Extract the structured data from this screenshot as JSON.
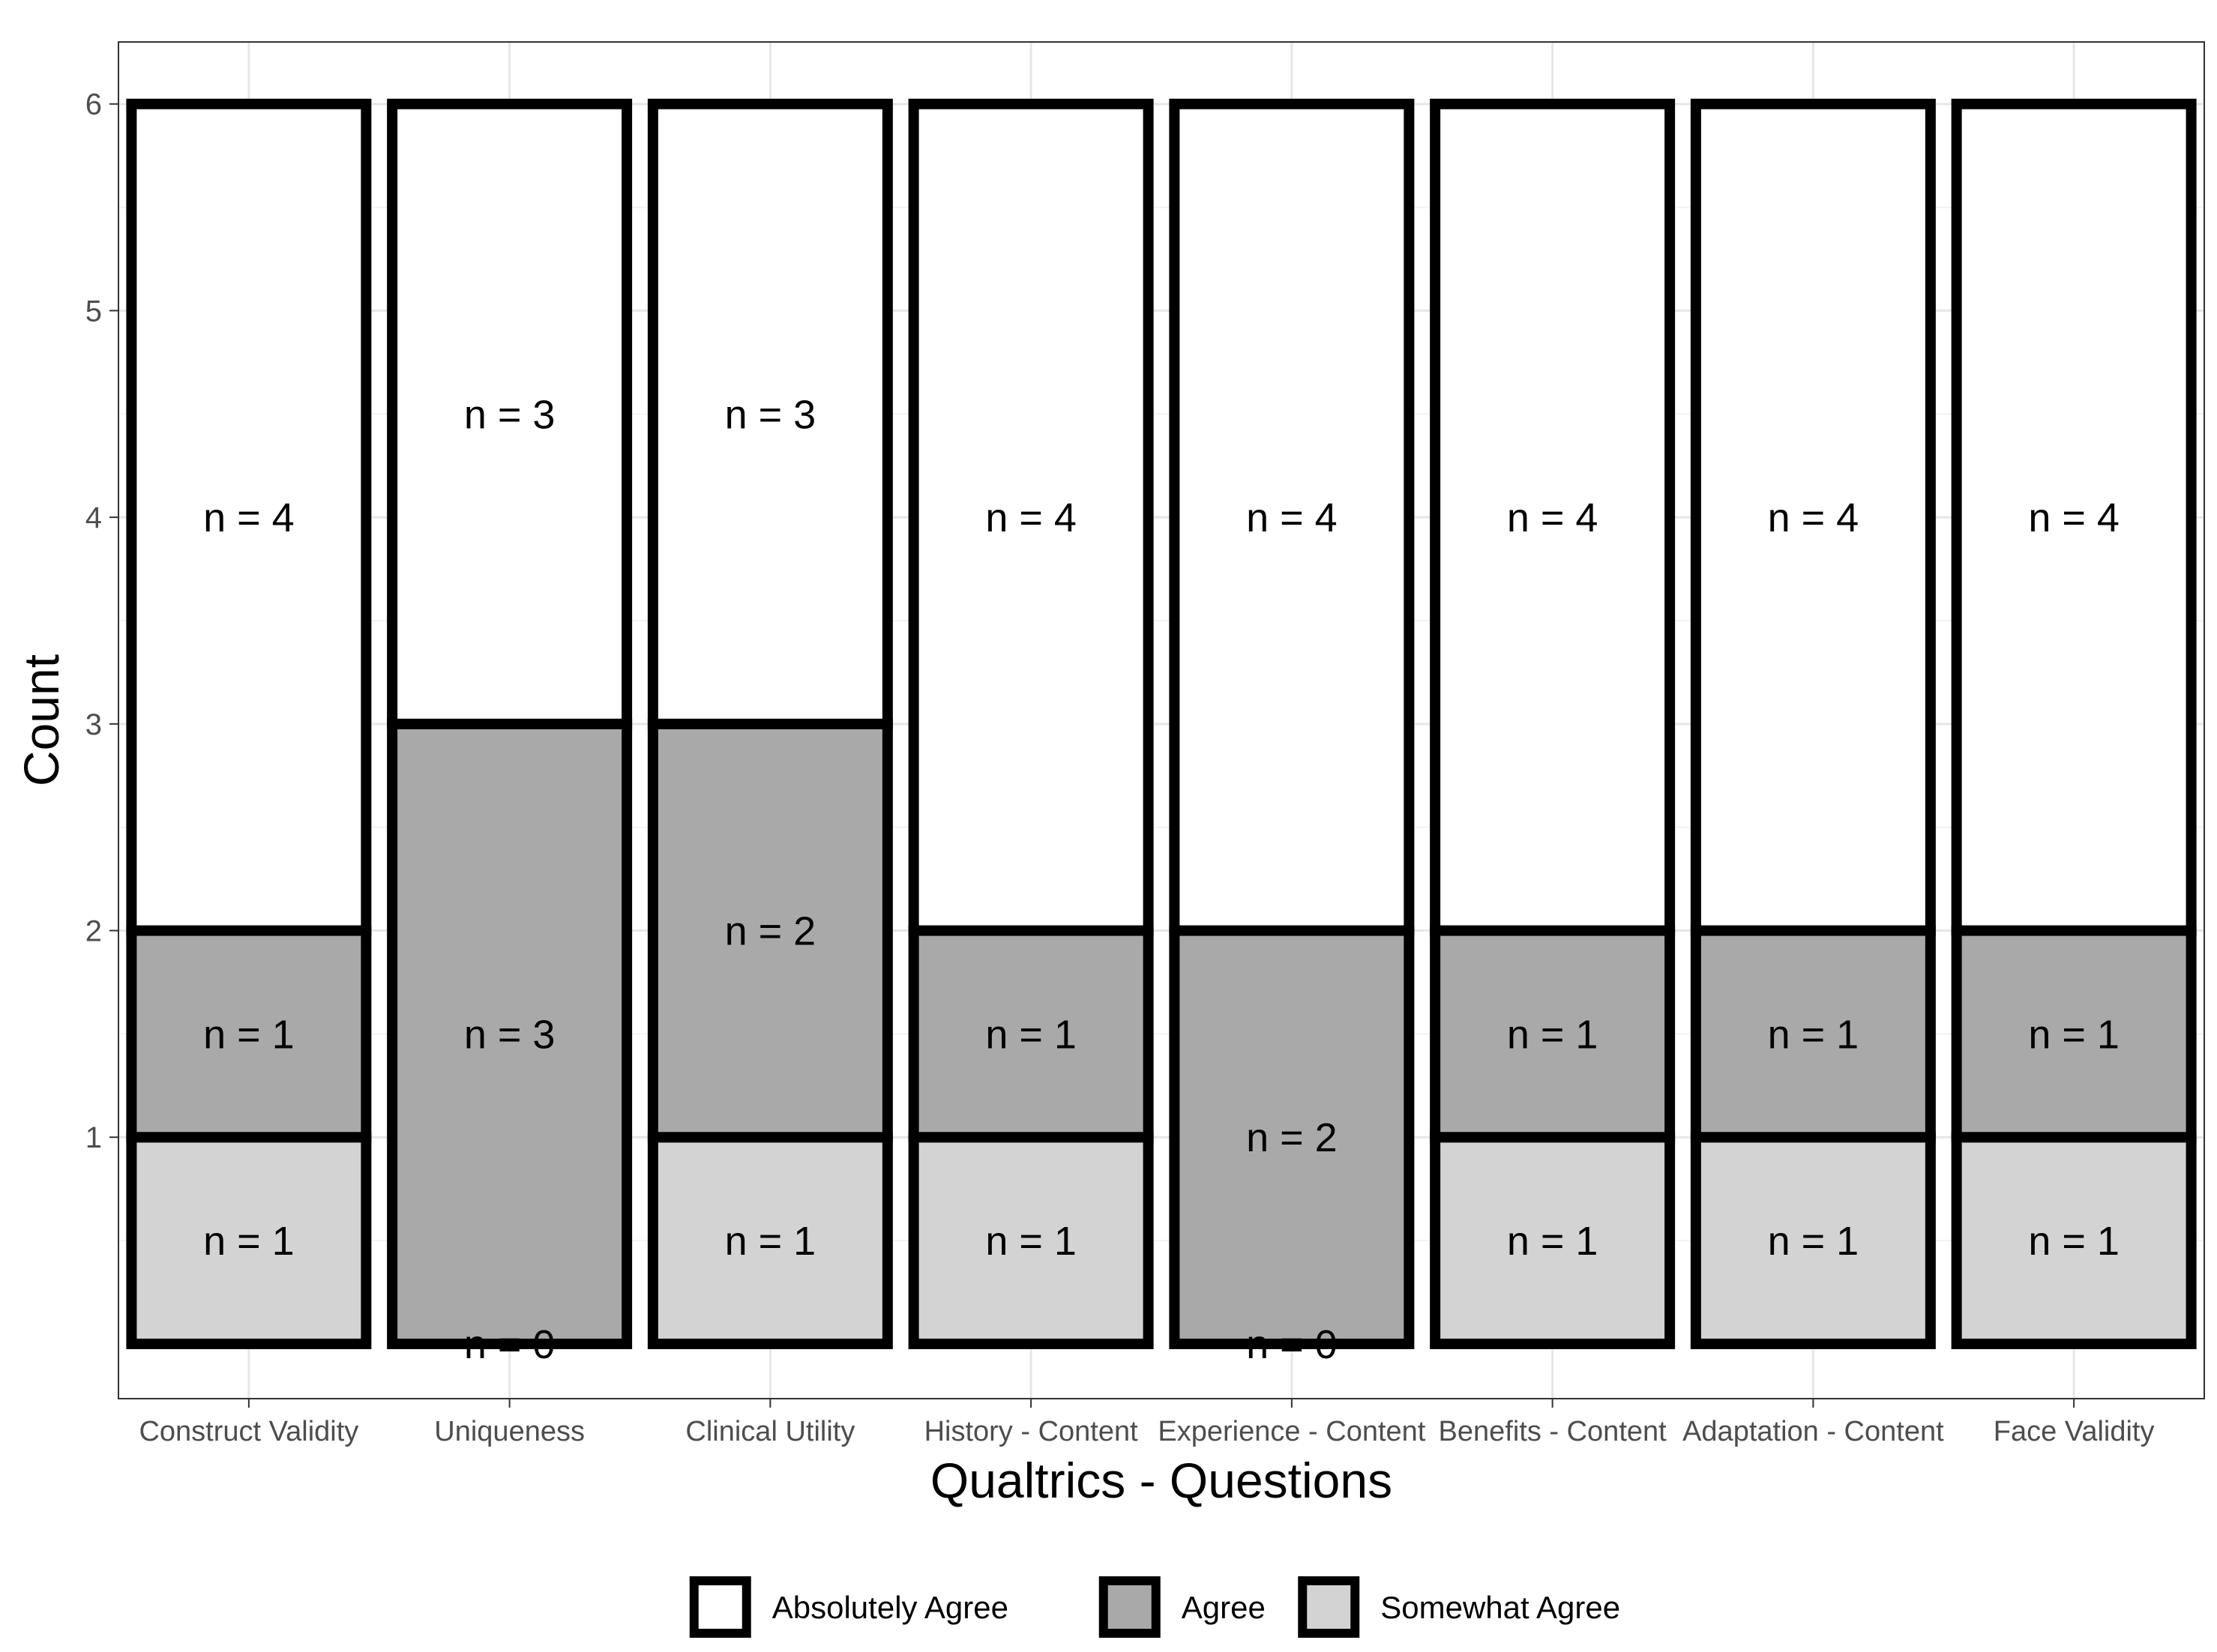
{
  "chart_data": {
    "type": "bar",
    "stacked": true,
    "title": "",
    "xlabel": "Qualtrics - Questions",
    "ylabel": "Count",
    "ylim": [
      0,
      6.3
    ],
    "yticks": [
      1,
      2,
      3,
      4,
      5,
      6
    ],
    "grid": true,
    "legend_position": "bottom",
    "categories": [
      "Construct Validity",
      "Uniqueness",
      "Clinical Utility",
      "History - Content",
      "Experience - Content",
      "Benefits - Content",
      "Adaptation - Content",
      "Face Validity"
    ],
    "series": [
      {
        "name": "Somewhat Agree",
        "color": "#d3d3d3",
        "values": [
          1,
          0,
          1,
          1,
          0,
          1,
          1,
          1
        ],
        "labels": [
          "n = 1",
          "n = 0",
          "n = 1",
          "n = 1",
          "n = 0",
          "n = 1",
          "n = 1",
          "n = 1"
        ]
      },
      {
        "name": "Agree",
        "color": "#a9a9a9",
        "values": [
          1,
          3,
          2,
          1,
          2,
          1,
          1,
          1
        ],
        "labels": [
          "n = 1",
          "n = 3",
          "n = 2",
          "n = 1",
          "n = 2",
          "n = 1",
          "n = 1",
          "n = 1"
        ]
      },
      {
        "name": "Absolutely Agree",
        "color": "#ffffff",
        "values": [
          4,
          3,
          3,
          4,
          4,
          4,
          4,
          4
        ],
        "labels": [
          "n = 4",
          "n = 3",
          "n = 3",
          "n = 4",
          "n = 4",
          "n = 4",
          "n = 4",
          "n = 4"
        ]
      }
    ],
    "legend_order": [
      "Absolutely Agree",
      "Agree",
      "Somewhat Agree"
    ]
  }
}
